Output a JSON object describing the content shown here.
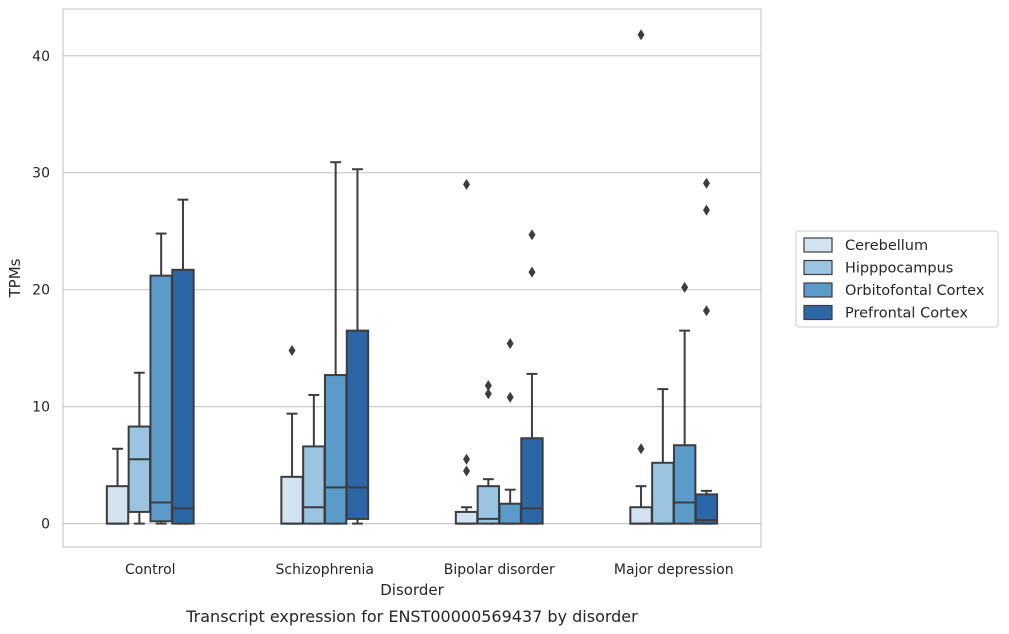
{
  "chart_data": {
    "type": "box",
    "title": "",
    "caption": "Transcript expression for ENST00000569437 by disorder",
    "xlabel": "Disorder",
    "ylabel": "TPMs",
    "ylim": [
      -2,
      44
    ],
    "yticks": [
      0,
      10,
      20,
      30,
      40
    ],
    "grid": "horizontal",
    "legend_position": "right",
    "categories": [
      "Control",
      "Schizophrenia",
      "Bipolar disorder",
      "Major depression"
    ],
    "series": [
      {
        "name": "Cerebellum",
        "color": "#d3e3f0",
        "boxes": [
          {
            "whislo": 0,
            "q1": 0,
            "med": 0,
            "q3": 3.2,
            "whishi": 6.4,
            "fliers": []
          },
          {
            "whislo": 0,
            "q1": 0,
            "med": 0,
            "q3": 4.0,
            "whishi": 9.4,
            "fliers": [
              14.8
            ]
          },
          {
            "whislo": 0,
            "q1": 0,
            "med": 0,
            "q3": 1.0,
            "whishi": 1.4,
            "fliers": [
              4.5,
              5.5,
              29.0
            ]
          },
          {
            "whislo": 0,
            "q1": 0,
            "med": 0,
            "q3": 1.4,
            "whishi": 3.2,
            "fliers": [
              6.4,
              41.8
            ]
          }
        ]
      },
      {
        "name": "Hipppocampus",
        "color": "#9ac4e0",
        "boxes": [
          {
            "whislo": 0,
            "q1": 1.0,
            "med": 5.5,
            "q3": 8.3,
            "whishi": 12.9,
            "fliers": []
          },
          {
            "whislo": 0,
            "q1": 0,
            "med": 1.4,
            "q3": 6.6,
            "whishi": 11.0,
            "fliers": []
          },
          {
            "whislo": 0,
            "q1": 0,
            "med": 0.4,
            "q3": 3.2,
            "whishi": 3.8,
            "fliers": [
              11.1,
              11.8
            ]
          },
          {
            "whislo": 0,
            "q1": 0,
            "med": 0,
            "q3": 5.2,
            "whishi": 11.5,
            "fliers": []
          }
        ]
      },
      {
        "name": "Orbitofontal Cortex",
        "color": "#5b9bc9",
        "boxes": [
          {
            "whislo": 0,
            "q1": 0.2,
            "med": 1.8,
            "q3": 21.2,
            "whishi": 24.8,
            "fliers": []
          },
          {
            "whislo": 0,
            "q1": 0,
            "med": 3.1,
            "q3": 12.7,
            "whishi": 30.9,
            "fliers": []
          },
          {
            "whislo": 0,
            "q1": 0,
            "med": 0,
            "q3": 1.7,
            "whishi": 2.9,
            "fliers": [
              10.8,
              15.4
            ]
          },
          {
            "whislo": 0,
            "q1": 0,
            "med": 1.8,
            "q3": 6.7,
            "whishi": 16.5,
            "fliers": [
              20.2
            ]
          }
        ]
      },
      {
        "name": "Prefrontal Cortex",
        "color": "#2b66a6",
        "boxes": [
          {
            "whislo": 0,
            "q1": 0,
            "med": 1.3,
            "q3": 21.7,
            "whishi": 27.7,
            "fliers": []
          },
          {
            "whislo": 0,
            "q1": 0.4,
            "med": 3.1,
            "q3": 16.5,
            "whishi": 30.3,
            "fliers": []
          },
          {
            "whislo": 0,
            "q1": 0,
            "med": 1.3,
            "q3": 7.3,
            "whishi": 12.8,
            "fliers": [
              21.5,
              24.7
            ]
          },
          {
            "whislo": 0,
            "q1": 0,
            "med": 0.3,
            "q3": 2.5,
            "whishi": 2.8,
            "fliers": [
              18.2,
              26.8,
              29.1
            ]
          }
        ]
      }
    ]
  }
}
